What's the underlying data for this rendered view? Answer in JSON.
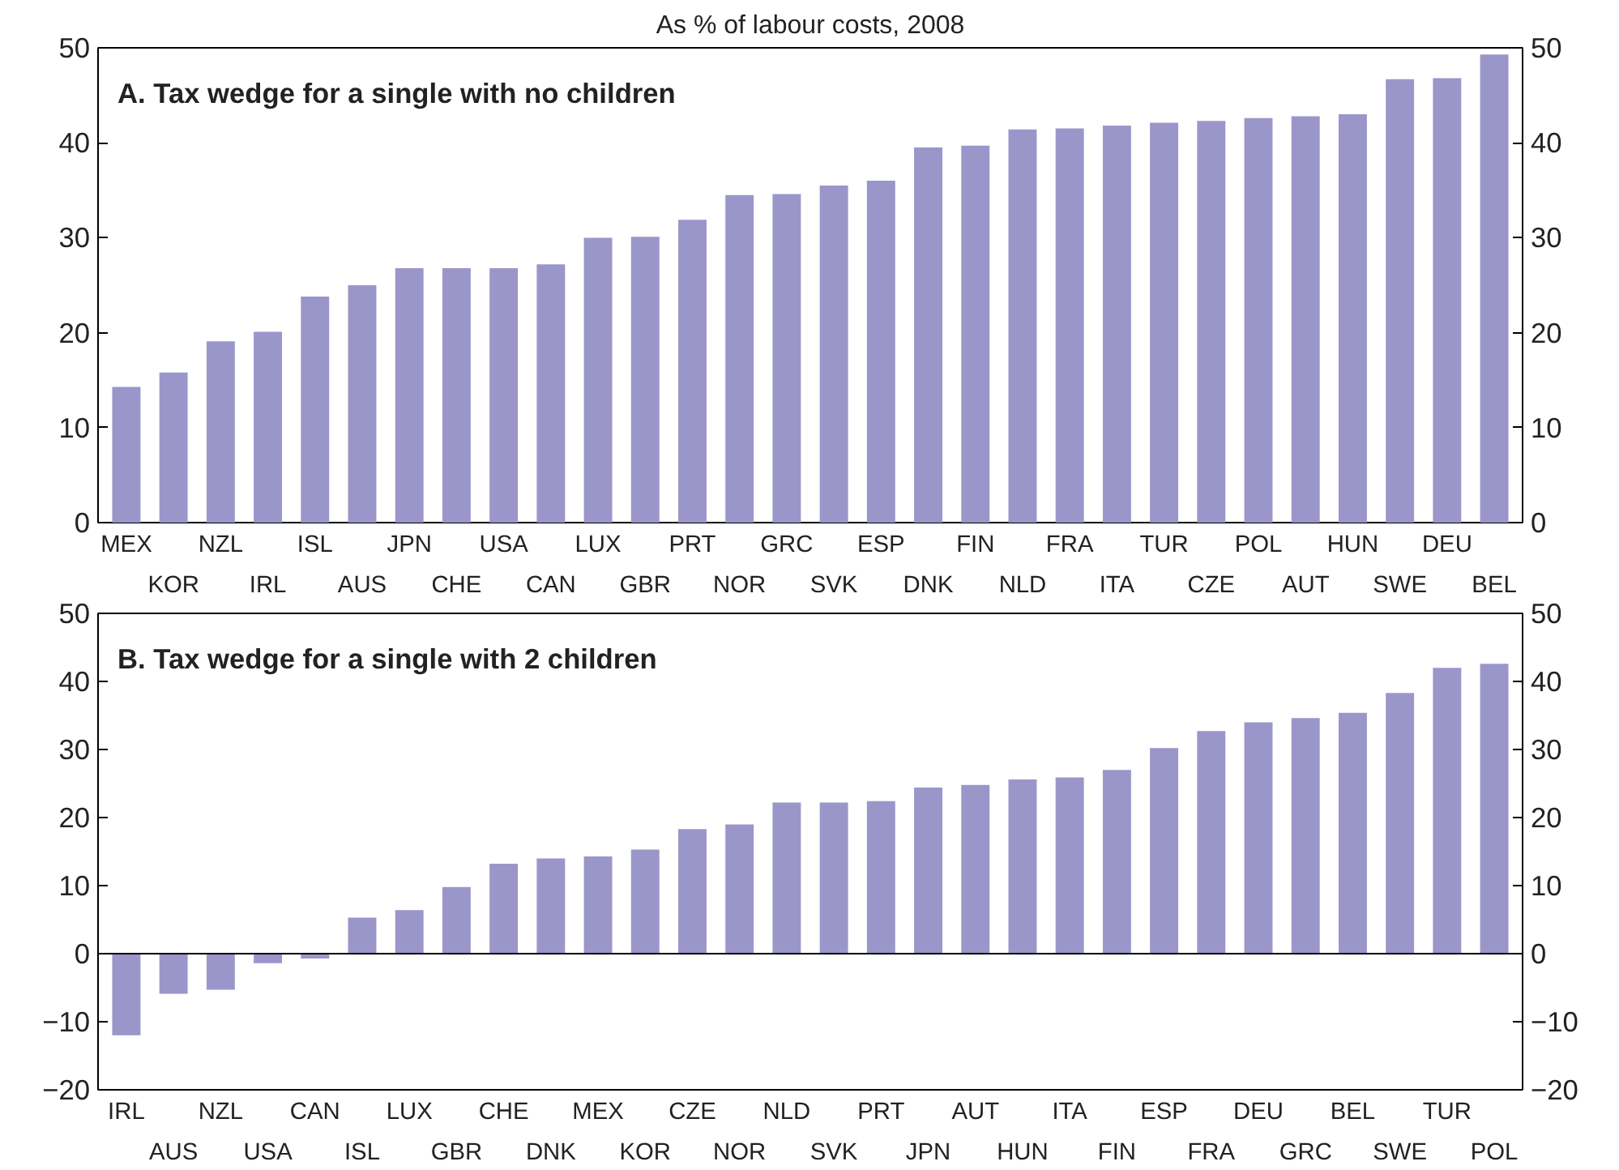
{
  "chart_data": [
    {
      "type": "bar",
      "subtitle": "As % of labour costs, 2008",
      "title": "A. Tax wedge for a single with no children",
      "categories": [
        "MEX",
        "KOR",
        "NZL",
        "IRL",
        "ISL",
        "AUS",
        "JPN",
        "CHE",
        "USA",
        "CAN",
        "LUX",
        "GBR",
        "PRT",
        "NOR",
        "GRC",
        "SVK",
        "ESP",
        "DNK",
        "FIN",
        "NLD",
        "FRA",
        "ITA",
        "TUR",
        "CZE",
        "POL",
        "AUT",
        "HUN",
        "SWE",
        "DEU",
        "BEL"
      ],
      "values": [
        14.3,
        15.8,
        19.1,
        20.1,
        23.8,
        25.0,
        26.8,
        26.8,
        26.8,
        27.2,
        30.0,
        30.1,
        31.9,
        34.5,
        34.6,
        35.5,
        36.0,
        39.5,
        39.7,
        41.4,
        41.5,
        41.8,
        42.1,
        42.3,
        42.6,
        42.8,
        43.0,
        46.7,
        46.8,
        49.3
      ],
      "color": "#9b96c9",
      "ylim": [
        0,
        50
      ],
      "yticks": [
        0,
        10,
        20,
        30,
        40,
        50
      ],
      "y2lim": [
        0,
        50
      ],
      "y2ticks": [
        0,
        10,
        20,
        30,
        40,
        50
      ],
      "grid": false
    },
    {
      "type": "bar",
      "title": "B. Tax wedge for a single with 2 children",
      "categories": [
        "IRL",
        "AUS",
        "NZL",
        "USA",
        "CAN",
        "ISL",
        "LUX",
        "GBR",
        "CHE",
        "DNK",
        "MEX",
        "KOR",
        "CZE",
        "NOR",
        "NLD",
        "SVK",
        "PRT",
        "JPN",
        "AUT",
        "HUN",
        "ITA",
        "FIN",
        "ESP",
        "FRA",
        "DEU",
        "GRC",
        "BEL",
        "SWE",
        "TUR",
        "POL"
      ],
      "values": [
        -12.0,
        -5.9,
        -5.3,
        -1.4,
        -0.7,
        5.3,
        6.4,
        9.8,
        13.2,
        14.0,
        14.3,
        15.3,
        18.3,
        19.0,
        22.2,
        22.2,
        22.4,
        24.4,
        24.8,
        25.6,
        25.9,
        27.0,
        30.2,
        32.7,
        34.0,
        34.6,
        35.4,
        38.3,
        42.0,
        42.6
      ],
      "color": "#9b96c9",
      "ylim": [
        -20,
        50
      ],
      "yticks": [
        -20,
        -10,
        0,
        10,
        20,
        30,
        40,
        50
      ],
      "y2lim": [
        -20,
        50
      ],
      "y2ticks": [
        -20,
        -10,
        0,
        10,
        20,
        30,
        40,
        50
      ],
      "grid": false,
      "ref_lines": [
        {
          "axis": "y",
          "value": 0
        }
      ]
    }
  ]
}
